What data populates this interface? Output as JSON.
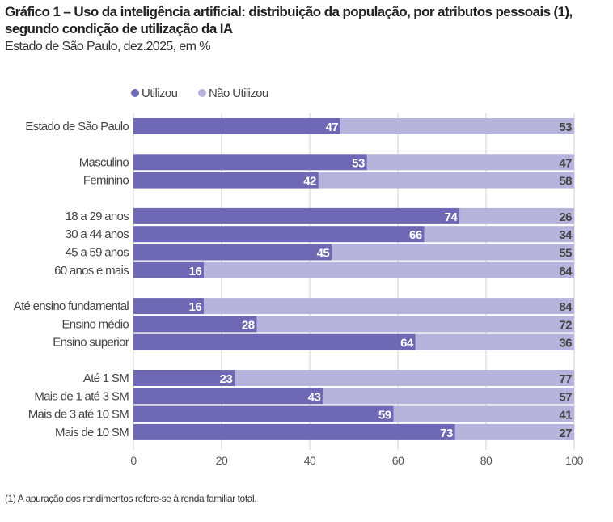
{
  "title": "Gráfico 1 – Uso da inteligência artificial: distribuição da população, por atributos pessoais (1), segundo condição de utilização da IA",
  "subtitle": "Estado de São Paulo, dez.2025, em %",
  "note": "(1) A apuração dos rendimentos refere-se à renda familiar total.",
  "colors": {
    "utilizou": "#6f69b5",
    "nao_utilizou": "#b6b3dc",
    "grid": "#d0d0d0"
  },
  "chart_data": {
    "type": "bar",
    "orientation": "horizontal",
    "stacked": true,
    "legend_position": "top",
    "xlim": [
      0,
      100
    ],
    "xticks": [
      0,
      20,
      40,
      60,
      80,
      100
    ],
    "grid": true,
    "groups": [
      [
        "Estado de São Paulo"
      ],
      [
        "Masculino",
        "Feminino"
      ],
      [
        "18 a 29 anos",
        "30 a 44 anos",
        "45 a 59 anos",
        "60 anos e mais"
      ],
      [
        "Até ensino fundamental",
        "Ensino médio",
        "Ensino superior"
      ],
      [
        "Até 1 SM",
        "Mais de 1 até 3 SM",
        "Mais de 3 até 10 SM",
        "Mais de 10 SM"
      ]
    ],
    "categories": [
      "Estado de São Paulo",
      "Masculino",
      "Feminino",
      "18 a 29 anos",
      "30 a 44 anos",
      "45 a 59 anos",
      "60 anos e mais",
      "Até ensino fundamental",
      "Ensino médio",
      "Ensino superior",
      "Até 1 SM",
      "Mais de 1 até 3 SM",
      "Mais de 3 até 10 SM",
      "Mais de 10 SM"
    ],
    "series": [
      {
        "name": "Utilizou",
        "values": [
          47,
          53,
          42,
          74,
          66,
          45,
          16,
          16,
          28,
          64,
          23,
          43,
          59,
          73
        ]
      },
      {
        "name": "Não Utilizou",
        "values": [
          53,
          47,
          58,
          26,
          34,
          55,
          84,
          84,
          72,
          36,
          77,
          57,
          41,
          27
        ]
      }
    ]
  }
}
